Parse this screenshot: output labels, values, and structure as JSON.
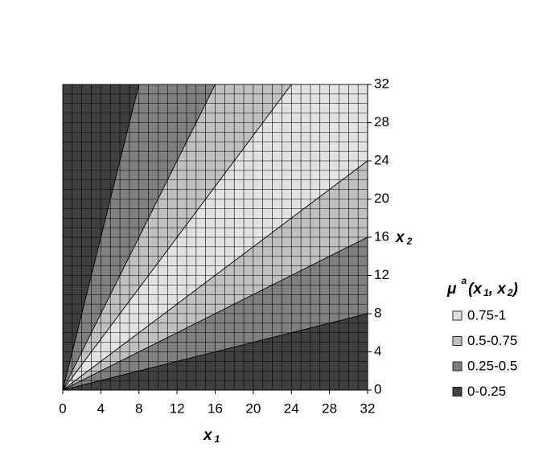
{
  "chart_data": {
    "type": "contour",
    "xlabel": {
      "text": "x",
      "sub": "1"
    },
    "ylabel": {
      "text": "x",
      "sub": "2"
    },
    "legend_title": {
      "symbol": "μ",
      "sup": "a",
      "open": "(x",
      "sub1": "1",
      "sep": ", x",
      "sub2": "2",
      "close": ")"
    },
    "xlim": [
      0,
      32
    ],
    "ylim": [
      0,
      32
    ],
    "xticks": [
      0,
      4,
      8,
      12,
      16,
      20,
      24,
      28,
      32
    ],
    "yticks": [
      0,
      4,
      8,
      12,
      16,
      20,
      24,
      28,
      32
    ],
    "mesh": true,
    "series": [
      {
        "name": "0.75-1",
        "color": "#e2e2e2",
        "polygons": [
          {
            "x": [
              0,
              24,
              32,
              32
            ],
            "y": [
              0,
              32,
              32,
              24
            ]
          }
        ]
      },
      {
        "name": "0.5-0.75",
        "color": "#c0c0c0",
        "polygons": [
          {
            "x": [
              0,
              16,
              24
            ],
            "y": [
              0,
              32,
              32
            ]
          },
          {
            "x": [
              0,
              32,
              32
            ],
            "y": [
              0,
              24,
              16
            ]
          }
        ]
      },
      {
        "name": "0.25-0.5",
        "color": "#808080",
        "polygons": [
          {
            "x": [
              0,
              8,
              16
            ],
            "y": [
              0,
              32,
              32
            ]
          },
          {
            "x": [
              0,
              32,
              32
            ],
            "y": [
              0,
              16,
              8
            ]
          }
        ]
      },
      {
        "name": "0-0.25",
        "color": "#404040",
        "polygons": [
          {
            "x": [
              0,
              0,
              8
            ],
            "y": [
              0,
              32,
              32
            ]
          },
          {
            "x": [
              0,
              32,
              32
            ],
            "y": [
              0,
              8,
              0
            ]
          }
        ]
      }
    ]
  }
}
